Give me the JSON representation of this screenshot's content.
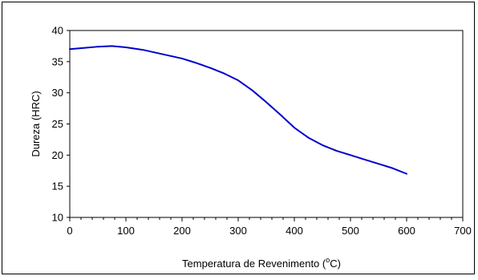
{
  "chart_data": {
    "type": "line",
    "xlabel_prefix": "Temperatura de Revenimento (",
    "xlabel_sup": "o",
    "xlabel_suffix": "C)",
    "ylabel": "Dureza (HRC)",
    "xlim": [
      0,
      700
    ],
    "ylim": [
      10,
      40
    ],
    "x_ticks": [
      0,
      100,
      200,
      300,
      400,
      500,
      600,
      700
    ],
    "y_ticks": [
      10,
      15,
      20,
      25,
      30,
      35,
      40
    ],
    "grid": false,
    "series": [
      {
        "color": "#0000cc",
        "x": [
          0,
          25,
          50,
          75,
          100,
          130,
          150,
          175,
          200,
          225,
          250,
          275,
          300,
          325,
          350,
          375,
          400,
          425,
          450,
          475,
          500,
          525,
          550,
          575,
          600
        ],
        "y": [
          37,
          37.2,
          37.4,
          37.5,
          37.3,
          36.9,
          36.5,
          36.0,
          35.5,
          34.8,
          34.0,
          33.1,
          32.0,
          30.4,
          28.5,
          26.5,
          24.4,
          22.8,
          21.6,
          20.7,
          20.0,
          19.3,
          18.6,
          17.9,
          17.0
        ]
      }
    ]
  }
}
